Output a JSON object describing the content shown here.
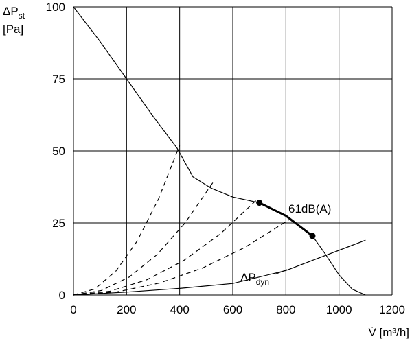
{
  "chart_data": {
    "type": "line",
    "ylabel": {
      "main": "ΔP",
      "sub": "st",
      "unit": "[Pa]"
    },
    "xlabel": "V̇ [m³/h]",
    "xlim": [
      0,
      1200
    ],
    "ylim": [
      0,
      100
    ],
    "xticks": [
      0,
      200,
      400,
      600,
      800,
      1000,
      1200
    ],
    "yticks": [
      0,
      25,
      50,
      75,
      100
    ],
    "grid": true,
    "series": [
      {
        "color": "#000000",
        "width": 1.2,
        "dashed": false,
        "x": [
          0,
          100,
          200,
          300,
          390,
          450,
          520,
          600,
          700,
          800,
          900,
          950,
          1000,
          1050,
          1100
        ],
        "values": [
          100,
          88,
          75,
          62,
          51,
          41,
          37,
          34,
          32,
          27.5,
          20.5,
          14,
          7,
          2,
          0
        ]
      },
      {
        "color": "#000000",
        "width": 3,
        "dashed": false,
        "markers": true,
        "x": [
          700,
          800,
          900
        ],
        "values": [
          32,
          27.5,
          20.5
        ]
      },
      {
        "color": "#000000",
        "width": 1.2,
        "dashed": true,
        "x": [
          0,
          80,
          160,
          240,
          320,
          400
        ],
        "values": [
          0,
          2.08,
          8.32,
          18.72,
          33.28,
          52
        ]
      },
      {
        "color": "#000000",
        "width": 1.2,
        "dashed": true,
        "x": [
          0,
          105,
          210,
          315,
          420,
          525
        ],
        "values": [
          0,
          1.56,
          6.24,
          14.04,
          24.96,
          39
        ]
      },
      {
        "color": "#000000",
        "width": 1.2,
        "dashed": true,
        "x": [
          0,
          138,
          276,
          414,
          552,
          690
        ],
        "values": [
          0,
          1.32,
          5.28,
          11.88,
          21.12,
          33
        ]
      },
      {
        "color": "#000000",
        "width": 1.2,
        "dashed": true,
        "x": [
          0,
          162,
          324,
          486,
          648,
          810
        ],
        "values": [
          0,
          1.04,
          4.16,
          9.36,
          16.64,
          26
        ]
      },
      {
        "color": "#000000",
        "width": 1.2,
        "dashed": false,
        "x": [
          0,
          200,
          400,
          600,
          800,
          900,
          1100
        ],
        "values": [
          0,
          1,
          2.3,
          4,
          8.5,
          12,
          19
        ]
      }
    ],
    "annotations": [
      {
        "text": "61dB(A)"
      },
      {
        "text": "ΔP",
        "sub": "dyn"
      }
    ]
  }
}
